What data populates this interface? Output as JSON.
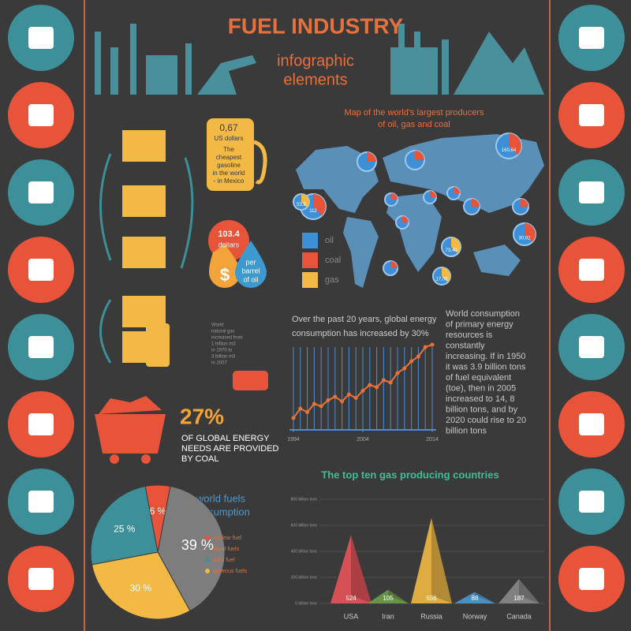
{
  "header": {
    "title": "FUEL INDUSTRY",
    "subtitle_1": "infographic",
    "subtitle_2": "elements"
  },
  "map": {
    "title_1": "Map of the world's largest producers",
    "title_2": "of oil, gas and coal",
    "legend": [
      "oil",
      "coal",
      "gas"
    ],
    "bubbles": [
      "112",
      "53,5",
      "160,64",
      "73,40",
      "30,02",
      "17,06"
    ]
  },
  "gasoline": {
    "price": "0,67",
    "unit": "US dollars",
    "note": [
      "The",
      "cheapest",
      "gasoline",
      "in the world",
      "- in Mexico"
    ]
  },
  "oil_price": {
    "price": "103.4",
    "unit": "dollars",
    "symbol": "$",
    "per": [
      "per",
      "barrel",
      "of oil"
    ]
  },
  "gas_note": [
    "World",
    "natural gas",
    "increased from",
    "1 trillion m3",
    "in 1970 to",
    "3 billion m3",
    "in 2007"
  ],
  "coal": {
    "percent": "27%",
    "text": [
      "OF GLOBAL ENERGY",
      "NEEDS ARE PROVIDED",
      "BY COAL"
    ]
  },
  "consumption_note": {
    "line_1": "Over the past 20 years, global energy",
    "line_2": "consumption has increased by 30%"
  },
  "paragraph": [
    "World consumption",
    "of primary energy",
    "resources  is",
    "constantly",
    "increasing. If in 1950",
    "it was 3.9 billion tons",
    "of fuel equivalent",
    "(toe), then in 2005",
    "increased to 14, 8",
    "billion tons, and by",
    "2020 could rise to 20",
    "billion tons"
  ],
  "chart_data": [
    {
      "type": "pie",
      "title": [
        "world fuels",
        "consumption"
      ],
      "categories": [
        "nuclear fuel",
        "liquid fuels",
        "solid fuel",
        "gaseous fuels"
      ],
      "values": [
        6,
        39,
        25,
        30
      ],
      "value_labels": [
        "6 %",
        "39 %",
        "25 %",
        "30 %"
      ],
      "colors": [
        "#e8543a",
        "#7d7d7d",
        "#3d8f9a",
        "#f2b944"
      ]
    },
    {
      "type": "bar",
      "title": "The top ten gas producing countries",
      "categories": [
        "USA",
        "Iran",
        "Russia",
        "Norway",
        "Canada"
      ],
      "values": [
        524,
        105,
        656,
        88,
        187
      ],
      "colors": [
        "#e8545a",
        "#6e9e4a",
        "#f2b944",
        "#4a9ad0",
        "#8a8a8a"
      ],
      "ylim": [
        0,
        800
      ],
      "yticks": [
        {
          "value": 0,
          "label": "0 billion tons"
        },
        {
          "value": 200,
          "label": "200 billion tons"
        },
        {
          "value": 400,
          "label": "400 billion tons"
        },
        {
          "value": 600,
          "label": "600 billion tons"
        },
        {
          "value": 800,
          "label": "800 billion tons"
        }
      ]
    },
    {
      "type": "line",
      "x": [
        1994,
        1995,
        1996,
        1997,
        1998,
        1999,
        2000,
        2001,
        2002,
        2003,
        2004,
        2005,
        2006,
        2007,
        2008,
        2009,
        2010,
        2011,
        2012,
        2013,
        2014
      ],
      "values": [
        10,
        18,
        15,
        22,
        20,
        25,
        28,
        24,
        30,
        27,
        33,
        38,
        36,
        42,
        40,
        48,
        52,
        58,
        62,
        70,
        72
      ],
      "xlim": [
        1994,
        2014
      ],
      "ylim": [
        0,
        100
      ],
      "xticks": [
        1994,
        2004,
        2014
      ],
      "color": "#e8733a",
      "grid_color": "#4a8fd8"
    }
  ]
}
